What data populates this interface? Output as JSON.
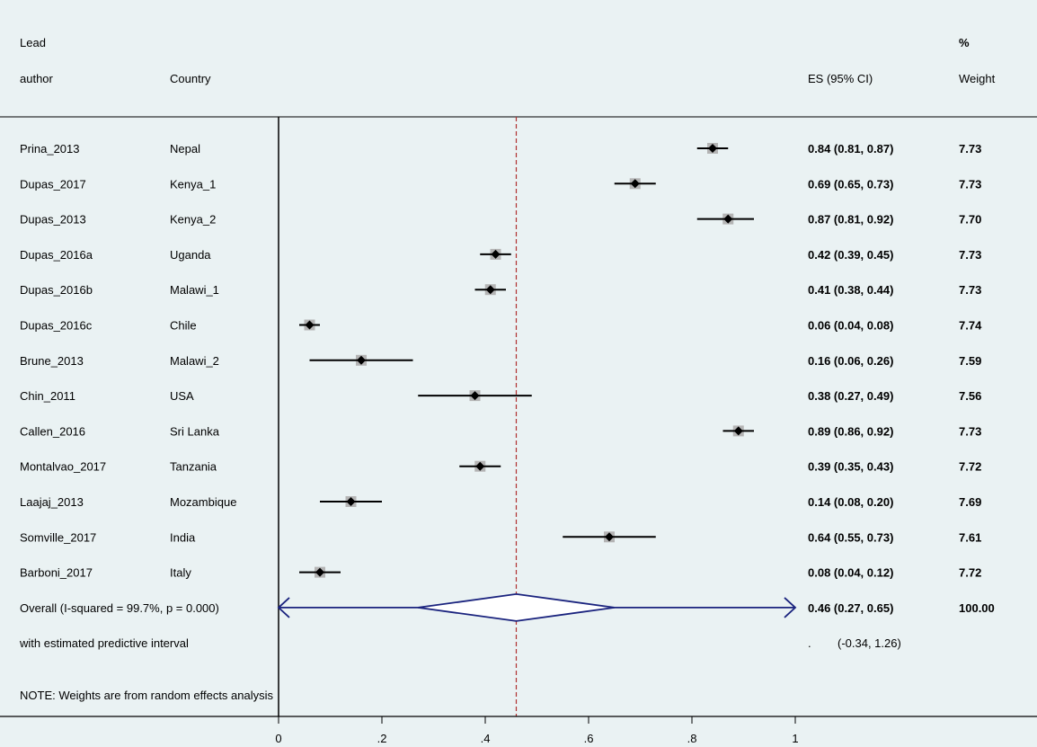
{
  "chart_data": {
    "type": "forest",
    "headers": {
      "author_line1": "Lead",
      "author_line2": "author",
      "country": "Country",
      "es": "ES (95% CI)",
      "weight_line1": "%",
      "weight_line2": "Weight"
    },
    "studies": [
      {
        "author": "Prina_2013",
        "country": "Nepal",
        "es": 0.84,
        "lo": 0.81,
        "hi": 0.87,
        "es_text": "0.84 (0.81, 0.87)",
        "weight": 7.73,
        "weight_text": "7.73"
      },
      {
        "author": "Dupas_2017",
        "country": "Kenya_1",
        "es": 0.69,
        "lo": 0.65,
        "hi": 0.73,
        "es_text": "0.69 (0.65, 0.73)",
        "weight": 7.73,
        "weight_text": "7.73"
      },
      {
        "author": "Dupas_2013",
        "country": "Kenya_2",
        "es": 0.87,
        "lo": 0.81,
        "hi": 0.92,
        "es_text": "0.87 (0.81, 0.92)",
        "weight": 7.7,
        "weight_text": "7.70"
      },
      {
        "author": "Dupas_2016a",
        "country": "Uganda",
        "es": 0.42,
        "lo": 0.39,
        "hi": 0.45,
        "es_text": "0.42 (0.39, 0.45)",
        "weight": 7.73,
        "weight_text": "7.73"
      },
      {
        "author": "Dupas_2016b",
        "country": "Malawi_1",
        "es": 0.41,
        "lo": 0.38,
        "hi": 0.44,
        "es_text": "0.41 (0.38, 0.44)",
        "weight": 7.73,
        "weight_text": "7.73"
      },
      {
        "author": "Dupas_2016c",
        "country": "Chile",
        "es": 0.06,
        "lo": 0.04,
        "hi": 0.08,
        "es_text": "0.06 (0.04, 0.08)",
        "weight": 7.74,
        "weight_text": "7.74"
      },
      {
        "author": "Brune_2013",
        "country": "Malawi_2",
        "es": 0.16,
        "lo": 0.06,
        "hi": 0.26,
        "es_text": "0.16 (0.06, 0.26)",
        "weight": 7.59,
        "weight_text": "7.59"
      },
      {
        "author": "Chin_2011",
        "country": "USA",
        "es": 0.38,
        "lo": 0.27,
        "hi": 0.49,
        "es_text": "0.38 (0.27, 0.49)",
        "weight": 7.56,
        "weight_text": "7.56"
      },
      {
        "author": "Callen_2016",
        "country": "Sri Lanka",
        "es": 0.89,
        "lo": 0.86,
        "hi": 0.92,
        "es_text": "0.89 (0.86, 0.92)",
        "weight": 7.73,
        "weight_text": "7.73"
      },
      {
        "author": "Montalvao_2017",
        "country": "Tanzania",
        "es": 0.39,
        "lo": 0.35,
        "hi": 0.43,
        "es_text": "0.39 (0.35, 0.43)",
        "weight": 7.72,
        "weight_text": "7.72"
      },
      {
        "author": "Laajaj_2013",
        "country": "Mozambique",
        "es": 0.14,
        "lo": 0.08,
        "hi": 0.2,
        "es_text": "0.14 (0.08, 0.20)",
        "weight": 7.69,
        "weight_text": "7.69"
      },
      {
        "author": "Somville_2017",
        "country": "India",
        "es": 0.64,
        "lo": 0.55,
        "hi": 0.73,
        "es_text": "0.64 (0.55, 0.73)",
        "weight": 7.61,
        "weight_text": "7.61"
      },
      {
        "author": "Barboni_2017",
        "country": "Italy",
        "es": 0.08,
        "lo": 0.04,
        "hi": 0.12,
        "es_text": "0.08 (0.04, 0.12)",
        "weight": 7.72,
        "weight_text": "7.72"
      }
    ],
    "overall": {
      "label": "Overall  (I-squared = 99.7%, p = 0.000)",
      "es": 0.46,
      "lo": 0.27,
      "hi": 0.65,
      "pi_lo": -0.34,
      "pi_hi": 1.26,
      "es_text": "0.46 (0.27, 0.65)",
      "weight_text": "100.00"
    },
    "predictive": {
      "label": "with estimated predictive interval",
      "dot": ".",
      "interval_text": "(-0.34, 1.26)"
    },
    "note": "NOTE: Weights are from random effects analysis",
    "x_axis": {
      "range": [
        0,
        1
      ],
      "ticks": [
        0,
        0.2,
        0.4,
        0.6,
        0.8,
        1
      ],
      "tick_labels": [
        "0",
        ".2",
        ".4",
        ".6",
        ".8",
        "1"
      ]
    },
    "colors": {
      "background": "#eaf2f3",
      "ci_line": "#000000",
      "weight_box": "#b4b4b4",
      "point": "#000000",
      "overall": "#1a237e",
      "ref_line": "#b03030"
    }
  }
}
